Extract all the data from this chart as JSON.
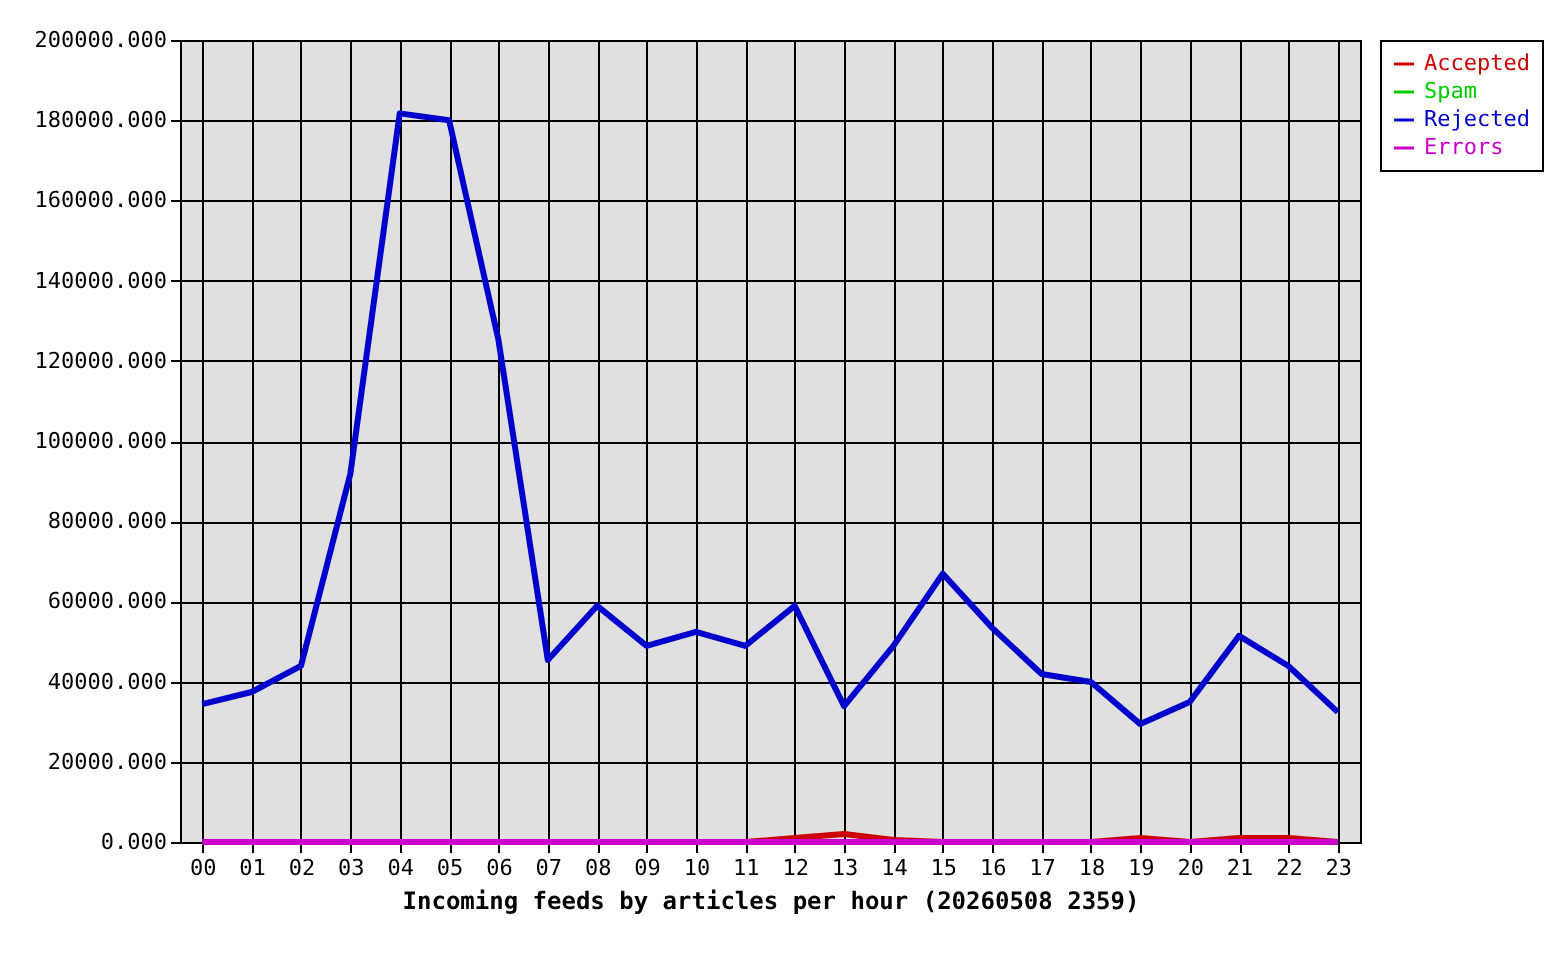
{
  "chart_data": {
    "type": "line",
    "xlabel": "Incoming feeds by articles per hour (20260508 2359)",
    "categories": [
      "00",
      "01",
      "02",
      "03",
      "04",
      "05",
      "06",
      "07",
      "08",
      "09",
      "10",
      "11",
      "12",
      "13",
      "14",
      "15",
      "16",
      "17",
      "18",
      "19",
      "20",
      "21",
      "22",
      "23"
    ],
    "series": [
      {
        "name": "Accepted",
        "color": "#cc0000",
        "values": [
          null,
          null,
          null,
          null,
          null,
          null,
          null,
          null,
          null,
          null,
          null,
          0,
          1000,
          2000,
          500,
          0,
          null,
          null,
          0,
          1000,
          0,
          1000,
          1000,
          0
        ]
      },
      {
        "name": "Spam",
        "color": "#00cc00",
        "values": [
          null,
          null,
          null,
          null,
          null,
          null,
          null,
          null,
          null,
          null,
          null,
          null,
          null,
          null,
          null,
          null,
          null,
          null,
          null,
          null,
          null,
          null,
          null,
          null
        ]
      },
      {
        "name": "Rejected",
        "color": "#0000cc",
        "values": [
          34400,
          37400,
          43900,
          91800,
          181700,
          180000,
          125200,
          45400,
          58900,
          48900,
          52400,
          48900,
          58900,
          33900,
          48900,
          66900,
          53400,
          41900,
          39900,
          29400,
          34900,
          51400,
          43900,
          32400
        ]
      },
      {
        "name": "Errors",
        "color": "#cc00cc",
        "values": [
          0,
          0,
          0,
          0,
          0,
          0,
          0,
          0,
          0,
          0,
          0,
          0,
          0,
          0,
          0,
          0,
          0,
          0,
          0,
          0,
          0,
          0,
          0,
          0
        ]
      }
    ],
    "ylim": [
      0,
      200000
    ],
    "yticks": [
      {
        "value": 0,
        "label": "0.000"
      },
      {
        "value": 20000,
        "label": "20000.000"
      },
      {
        "value": 40000,
        "label": "40000.000"
      },
      {
        "value": 60000,
        "label": "60000.000"
      },
      {
        "value": 80000,
        "label": "80000.000"
      },
      {
        "value": 100000,
        "label": "100000.000"
      },
      {
        "value": 120000,
        "label": "120000.000"
      },
      {
        "value": 140000,
        "label": "140000.000"
      },
      {
        "value": 160000,
        "label": "160000.000"
      },
      {
        "value": 180000,
        "label": "180000.000"
      },
      {
        "value": 200000,
        "label": "200000.000"
      }
    ],
    "grid": true,
    "legend": "top right",
    "line_style": "solid"
  }
}
